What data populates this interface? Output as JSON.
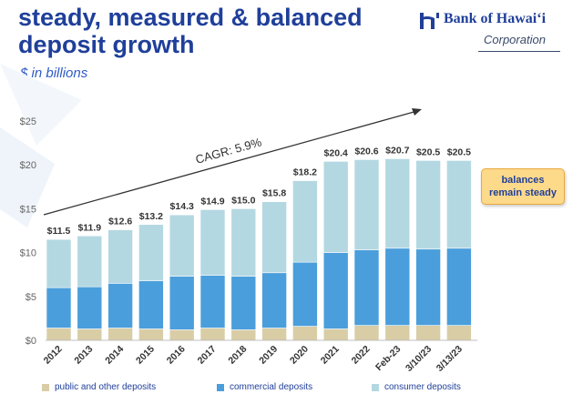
{
  "header": {
    "title": "steady, measured & balanced deposit growth",
    "subtitle": "$ in billions"
  },
  "logo": {
    "name": "Bank of Hawai‘i",
    "sub": "Corporation",
    "icon": "bank-hawaii-icon"
  },
  "callout": {
    "text": "balances remain steady"
  },
  "colors": {
    "public": "#d9cda6",
    "commercial": "#4a9edb",
    "consumer": "#b4d8e2",
    "title": "#1f3f9a",
    "axis_text": "#666666"
  },
  "chart_data": {
    "type": "bar",
    "stacked": true,
    "title": "",
    "xlabel": "",
    "ylabel": "",
    "ylim": [
      0,
      25
    ],
    "yticks": [
      0,
      5,
      10,
      15,
      20,
      25
    ],
    "ytick_labels": [
      "$0",
      "$5",
      "$10",
      "$15",
      "$20",
      "$25"
    ],
    "categories": [
      "2012",
      "2013",
      "2014",
      "2015",
      "2016",
      "2017",
      "2018",
      "2019",
      "2020",
      "2021",
      "2022",
      "Feb-23",
      "3/10/23",
      "3/13/23"
    ],
    "totals_labels": [
      "$11.5",
      "$11.9",
      "$12.6",
      "$13.2",
      "$14.3",
      "$14.9",
      "$15.0",
      "$15.8",
      "$18.2",
      "$20.4",
      "$20.6",
      "$20.7",
      "$20.5",
      "$20.5"
    ],
    "series": [
      {
        "name": "public and other deposits",
        "values": [
          1.4,
          1.3,
          1.4,
          1.3,
          1.2,
          1.4,
          1.2,
          1.4,
          1.6,
          1.3,
          1.7,
          1.7,
          1.7,
          1.7
        ]
      },
      {
        "name": "commercial deposits",
        "values": [
          4.6,
          4.8,
          5.1,
          5.5,
          6.1,
          6.0,
          6.1,
          6.3,
          7.3,
          8.7,
          8.6,
          8.8,
          8.7,
          8.8
        ]
      },
      {
        "name": "consumer deposits",
        "values": [
          5.5,
          5.8,
          6.1,
          6.4,
          7.0,
          7.5,
          7.7,
          8.1,
          9.3,
          10.4,
          10.3,
          10.2,
          10.1,
          10.0
        ]
      }
    ],
    "annotations": [
      {
        "text": "CAGR: 5.9%",
        "type": "arrow"
      }
    ],
    "legend": "bottom"
  }
}
